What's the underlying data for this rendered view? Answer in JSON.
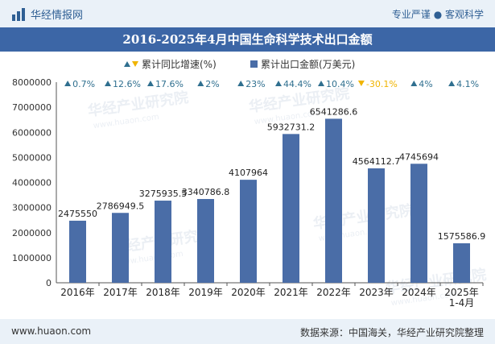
{
  "header": {
    "brand": "华经情报网",
    "tagline": "专业严谨 ● 客观科学"
  },
  "colors": {
    "bar": "#4a6da7",
    "up": "#2f6f8f",
    "down": "#f0b400",
    "header_bg": "#eaf1f8",
    "title_bg": "#3c66a6"
  },
  "chart_data": {
    "type": "bar",
    "title": "2016-2025年4月中国生命科学技术出口金额",
    "categories": [
      "2016年",
      "2017年",
      "2018年",
      "2019年",
      "2020年",
      "2021年",
      "2022年",
      "2023年",
      "2024年",
      "2025年\n1-4月"
    ],
    "series": [
      {
        "name": "累计出口金额(万美元)",
        "values": [
          2475550,
          2786949.5,
          3275935.5,
          3340786.8,
          4107964,
          5932731.2,
          6541286.6,
          4564112.7,
          4745694,
          1575586.9
        ],
        "labels": [
          "2475550",
          "2786949.5",
          "3275935.5",
          "3340786.8",
          "4107964",
          "5932731.2",
          "6541286.6",
          "4564112.7",
          "4745694",
          "1575586.9"
        ]
      },
      {
        "name": "累计同比增速(%)",
        "values": [
          0.7,
          12.6,
          17.6,
          2,
          23,
          44.4,
          10.4,
          -30.1,
          4,
          4.1
        ],
        "labels": [
          "0.7%",
          "12.6%",
          "17.6%",
          "2%",
          "23%",
          "44.4%",
          "10.4%",
          "-30.1%",
          "4%",
          "4.1%"
        ]
      }
    ],
    "ylim": [
      0,
      8000000
    ],
    "yticks": [
      "0",
      "1000000",
      "2000000",
      "3000000",
      "4000000",
      "5000000",
      "6000000",
      "7000000",
      "8000000"
    ],
    "legend_position": "top-center"
  },
  "watermark": "华经产业研究院",
  "watermark_url": "www.huaon.com",
  "footer": {
    "website": "www.huaon.com",
    "source": "数据来源：中国海关，华经产业研究院整理"
  }
}
